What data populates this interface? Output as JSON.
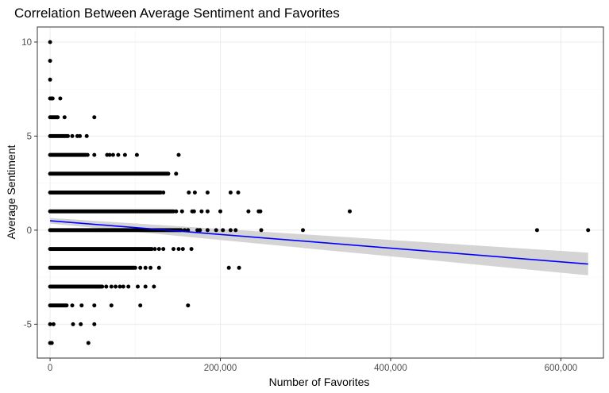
{
  "chart_data": {
    "type": "scatter",
    "title": "Correlation Between Average Sentiment and Favorites",
    "xlabel": "Number of Favorites",
    "ylabel": "Average Sentiment",
    "xlim": [
      -15000,
      650000
    ],
    "ylim": [
      -6.8,
      10.8
    ],
    "x_ticks": [
      0,
      200000,
      400000,
      600000
    ],
    "x_tick_labels": [
      "0",
      "200,000",
      "400,000",
      "600,000"
    ],
    "y_ticks": [
      -5,
      0,
      5,
      10
    ],
    "y_tick_labels": [
      "-5",
      "0",
      "5",
      "10"
    ],
    "grid": true,
    "point_color": "#000000",
    "trend_color": "#0000ff",
    "band_color": "#cccccc",
    "trend_line": {
      "method": "linear fit with confidence band",
      "x": [
        0,
        632000
      ],
      "y": [
        0.5,
        -1.8
      ],
      "band_lower": [
        0.35,
        -2.4
      ],
      "band_upper": [
        0.65,
        -1.2
      ]
    },
    "rows": [
      {
        "y": 10,
        "x_ranges": [],
        "x_points": [
          0
        ]
      },
      {
        "y": 9,
        "x_ranges": [],
        "x_points": [
          0
        ]
      },
      {
        "y": 8,
        "x_ranges": [],
        "x_points": [
          0
        ]
      },
      {
        "y": 7,
        "x_ranges": [
          [
            0,
            4000
          ]
        ],
        "x_points": [
          12000
        ]
      },
      {
        "y": 6,
        "x_ranges": [
          [
            0,
            10000
          ]
        ],
        "x_points": [
          17000,
          52000
        ]
      },
      {
        "y": 5,
        "x_ranges": [
          [
            0,
            22000
          ]
        ],
        "x_points": [
          26000,
          32000,
          35000,
          43000
        ]
      },
      {
        "y": 4,
        "x_ranges": [
          [
            0,
            42000
          ]
        ],
        "x_points": [
          44000,
          52000,
          67000,
          70000,
          74000,
          80000,
          88000,
          102000,
          151000
        ]
      },
      {
        "y": 3,
        "x_ranges": [
          [
            0,
            140000
          ]
        ],
        "x_points": [
          148000
        ]
      },
      {
        "y": 2,
        "x_ranges": [
          [
            0,
            130000
          ]
        ],
        "x_points": [
          133000,
          163000,
          170000,
          185000,
          212000,
          221000
        ]
      },
      {
        "y": 1,
        "x_ranges": [
          [
            0,
            145000
          ]
        ],
        "x_points": [
          148000,
          155000,
          167000,
          169000,
          178000,
          185000,
          200000,
          233000,
          245000,
          247000,
          352000
        ]
      },
      {
        "y": 0,
        "x_ranges": [
          [
            0,
            155000
          ]
        ],
        "x_points": [
          158000,
          162000,
          173000,
          176000,
          185000,
          195000,
          203000,
          212000,
          218000,
          248000,
          297000,
          572000,
          632000
        ]
      },
      {
        "y": -1,
        "x_ranges": [
          [
            0,
            120000
          ]
        ],
        "x_points": [
          123000,
          128000,
          133000,
          145000,
          151000,
          156000,
          166000
        ]
      },
      {
        "y": -2,
        "x_ranges": [
          [
            0,
            100000
          ]
        ],
        "x_points": [
          106000,
          112000,
          118000,
          128000,
          210000,
          222000
        ]
      },
      {
        "y": -3,
        "x_ranges": [
          [
            0,
            62000
          ]
        ],
        "x_points": [
          66000,
          72000,
          77000,
          82000,
          86000,
          92000,
          103000,
          112000,
          122000
        ]
      },
      {
        "y": -4,
        "x_ranges": [
          [
            0,
            20000
          ]
        ],
        "x_points": [
          26000,
          37000,
          52000,
          72000,
          106000,
          162000
        ]
      },
      {
        "y": -5,
        "x_ranges": [],
        "x_points": [
          0,
          4000,
          27000,
          36000,
          52000
        ]
      },
      {
        "y": -6,
        "x_ranges": [],
        "x_points": [
          0,
          2000,
          45000
        ]
      }
    ]
  }
}
